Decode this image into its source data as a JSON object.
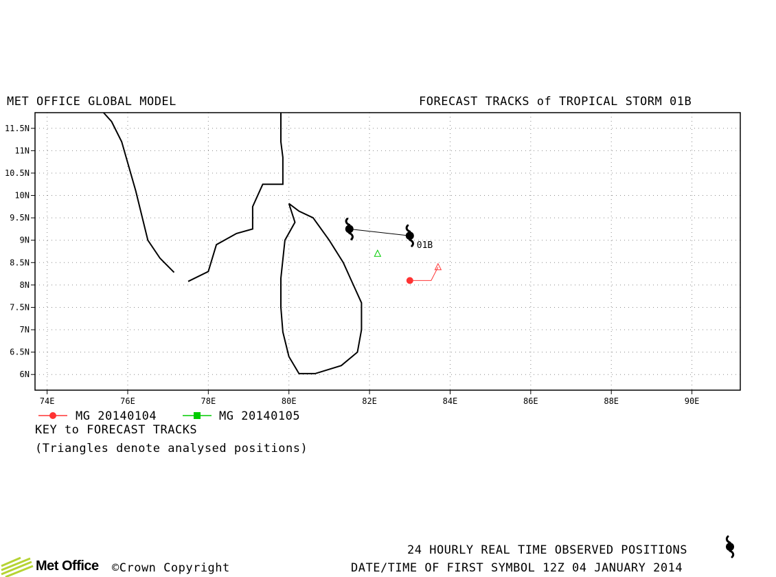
{
  "header": {
    "left_title": "MET OFFICE GLOBAL MODEL",
    "right_title": "FORECAST TRACKS of TROPICAL STORM 01B"
  },
  "chart_data": {
    "type": "map",
    "x_axis": {
      "ticks": [
        "74E",
        "76E",
        "78E",
        "80E",
        "82E",
        "84E",
        "86E",
        "88E",
        "90E"
      ],
      "tick_values": [
        74,
        76,
        78,
        80,
        82,
        84,
        86,
        88,
        90
      ],
      "range": [
        73.7,
        91.2
      ]
    },
    "y_axis": {
      "ticks": [
        "6N",
        "6.5N",
        "7N",
        "7.5N",
        "8N",
        "8.5N",
        "9N",
        "9.5N",
        "10N",
        "10.5N",
        "11N",
        "11.5N"
      ],
      "tick_values": [
        6,
        6.5,
        7,
        7.5,
        8,
        8.5,
        9,
        9.5,
        10,
        10.5,
        11,
        11.5
      ],
      "range": [
        5.65,
        11.85
      ]
    },
    "grid": true,
    "observed_track": {
      "storm_label": "01B",
      "color": "#000000",
      "points": [
        [
          83.0,
          9.1
        ],
        [
          81.5,
          9.25
        ]
      ]
    },
    "forecast_tracks": [
      {
        "name": "MG 20140104",
        "color": "#ff3333",
        "analysed": [
          83.7,
          8.4
        ],
        "forecast": [
          [
            83.0,
            8.1
          ]
        ]
      },
      {
        "name": "MG 20140105",
        "color": "#00cc00",
        "analysed": [
          82.2,
          8.7
        ],
        "forecast": []
      }
    ],
    "coastlines": [
      [
        [
          75.4,
          11.85
        ],
        [
          75.6,
          11.65
        ],
        [
          75.85,
          11.2
        ],
        [
          76.2,
          10.1
        ],
        [
          76.5,
          9.0
        ],
        [
          76.8,
          8.6
        ],
        [
          77.15,
          8.28
        ]
      ],
      [
        [
          77.5,
          8.08
        ],
        [
          78.0,
          8.3
        ],
        [
          78.2,
          8.9
        ],
        [
          78.7,
          9.15
        ],
        [
          79.1,
          9.25
        ],
        [
          79.1,
          9.75
        ],
        [
          79.35,
          10.25
        ],
        [
          79.85,
          10.25
        ],
        [
          79.85,
          10.85
        ],
        [
          79.8,
          11.2
        ],
        [
          79.8,
          11.85
        ]
      ],
      [
        [
          80.0,
          9.82
        ],
        [
          80.25,
          9.65
        ],
        [
          80.6,
          9.5
        ],
        [
          81.0,
          9.0
        ],
        [
          81.35,
          8.5
        ],
        [
          81.6,
          8.0
        ],
        [
          81.8,
          7.6
        ],
        [
          81.8,
          7.0
        ],
        [
          81.7,
          6.5
        ],
        [
          81.3,
          6.2
        ],
        [
          80.65,
          6.02
        ],
        [
          80.25,
          6.02
        ],
        [
          80.0,
          6.4
        ],
        [
          79.85,
          6.95
        ],
        [
          79.8,
          7.5
        ],
        [
          79.8,
          8.15
        ],
        [
          79.9,
          9.0
        ],
        [
          80.15,
          9.4
        ],
        [
          80.0,
          9.82
        ]
      ]
    ]
  },
  "legend": {
    "items": [
      {
        "label": "MG 20140104",
        "color": "#ff3333",
        "marker": "circle"
      },
      {
        "label": "MG 20140105",
        "color": "#00cc00",
        "marker": "square"
      }
    ],
    "key_title": "KEY to FORECAST TRACKS",
    "key_note": "(Triangles denote analysed positions)"
  },
  "footer": {
    "observed_note": "24 HOURLY REAL TIME OBSERVED POSITIONS",
    "first_symbol": "DATE/TIME OF FIRST SYMBOL 12Z 04 JANUARY 2014",
    "logo_text": "Met Office",
    "copyright": "©Crown Copyright"
  }
}
